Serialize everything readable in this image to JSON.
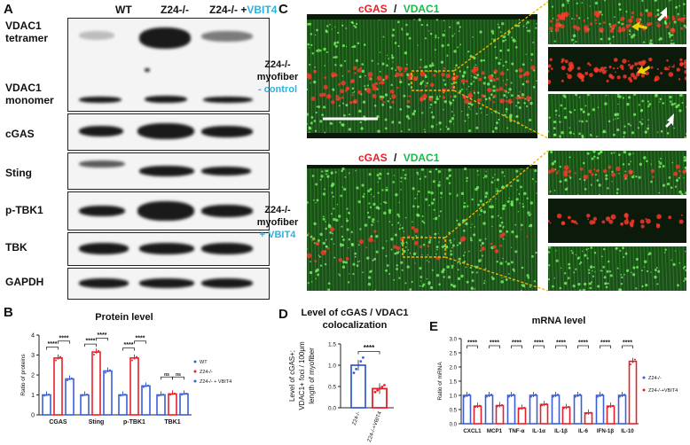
{
  "panels": {
    "a": "A",
    "b": "B",
    "c": "C",
    "d": "D",
    "e": "E"
  },
  "blot": {
    "lanes": [
      "WT",
      "Z24-/-",
      "Z24-/- +",
      "VBIT4"
    ],
    "rows": [
      {
        "label_line1": "VDAC1",
        "label_line2": "tetramer",
        "label2_line1": "VDAC1",
        "label2_line2": "monomer"
      },
      {
        "label": "cGAS"
      },
      {
        "label": "Sting"
      },
      {
        "label": "p-TBK1"
      },
      {
        "label": "TBK"
      },
      {
        "label": "GAPDH"
      }
    ]
  },
  "micro": {
    "top_title_red": "cGAS",
    "top_title_sep": "/",
    "top_title_green": "VDAC1",
    "bottom_title_red": "cGAS",
    "bottom_title_sep": "/",
    "bottom_title_green": "VDAC1",
    "top_label_line1": "Z24-/-",
    "top_label_line2": "myofiber",
    "top_label_line3": "- control",
    "bottom_label_line1": "Z24-/-",
    "bottom_label_line2": "myofiber",
    "bottom_label_line3": "+ VBIT4"
  },
  "colors": {
    "wt": "#3a5fd9",
    "z24": "#e8202a",
    "vbit": "#3a5fd9",
    "accent": "#2bb3e0",
    "dash": "#f0b400"
  },
  "chart_data": [
    {
      "type": "bar",
      "title": "Protein level",
      "ylabel": "Ratio of proteins",
      "categories": [
        "CGAS",
        "Sting",
        "p-TBK1",
        "TBK1"
      ],
      "ylim": [
        0,
        4
      ],
      "yticks": [
        0,
        1,
        2,
        3,
        4
      ],
      "series": [
        {
          "name": "WT",
          "values": [
            1.0,
            1.0,
            1.0,
            1.0
          ]
        },
        {
          "name": "Z24-/-",
          "values": [
            2.85,
            3.15,
            2.85,
            1.05
          ]
        },
        {
          "name": "Z24-/- + VBIT4",
          "values": [
            1.8,
            2.2,
            1.45,
            1.05
          ]
        }
      ],
      "annotations": [
        "****",
        "****",
        "****",
        "****",
        "****",
        "****",
        "ns",
        "ns"
      ],
      "legend": "right"
    },
    {
      "type": "bar",
      "title_line1": "Level of cGAS / VDAC1",
      "title_line2": "colocalization",
      "ylabel_line1": "Level of cGAS+;",
      "ylabel_line2": "VDAC1+ foci / 100μm",
      "ylabel_line3": "length of myofiber",
      "categories": [
        "Z24-/-",
        "Z24-/-+VBIT4"
      ],
      "values": [
        1.0,
        0.45
      ],
      "ylim": [
        0,
        1.5
      ],
      "yticks": [
        "0.0",
        "0.5",
        "1.0",
        "1.5"
      ],
      "annotation": "****"
    },
    {
      "type": "bar",
      "title": "mRNA level",
      "ylabel": "Ratio of mRNA",
      "categories": [
        "CXCL1",
        "MCP1",
        "TNF-α",
        "IL-1α",
        "IL-1β",
        "IL-6",
        "IFN-1β",
        "IL-10"
      ],
      "ylim": [
        0,
        3.0
      ],
      "yticks": [
        "0.0",
        "0.5",
        "1.0",
        "1.5",
        "2.0",
        "2.5",
        "3.0"
      ],
      "series": [
        {
          "name": "Z24-/-",
          "values": [
            1.0,
            1.0,
            1.0,
            1.0,
            1.0,
            1.0,
            1.0,
            1.0
          ]
        },
        {
          "name": "Z24-/-+VBIT4",
          "values": [
            0.62,
            0.64,
            0.55,
            0.68,
            0.58,
            0.38,
            0.62,
            2.2
          ]
        }
      ],
      "annotations": [
        "****",
        "****",
        "****",
        "****",
        "****",
        "****",
        "****",
        "****"
      ],
      "legend": "right"
    }
  ]
}
